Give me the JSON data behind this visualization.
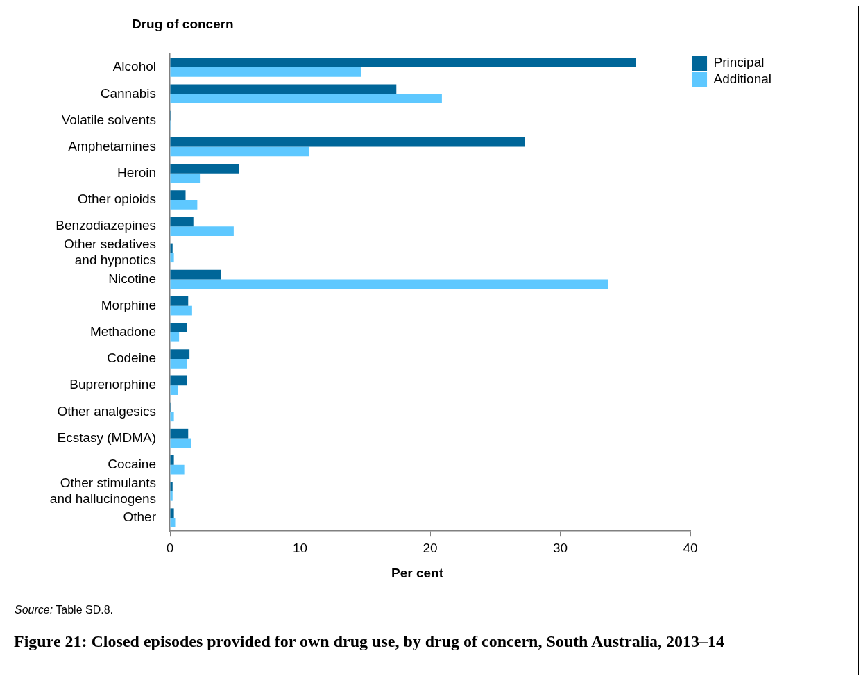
{
  "chart_data": {
    "type": "bar",
    "orientation": "horizontal",
    "title": "Figure 21: Closed episodes provided for own drug use, by drug of concern, South Australia, 2013–14",
    "ylabel": "Drug of concern",
    "xlabel": "Per cent",
    "categories": [
      "Alcohol",
      "Cannabis",
      "Volatile solvents",
      "Amphetamines",
      "Heroin",
      "Other opioids",
      "Benzodiazepines",
      "Other sedatives and hypnotics",
      "Nicotine",
      "Morphine",
      "Methadone",
      "Codeine",
      "Buprenorphine",
      "Other analgesics",
      "Ecstasy (MDMA)",
      "Cocaine",
      "Other stimulants and hallucinogens",
      "Other"
    ],
    "series": [
      {
        "name": "Principal",
        "color": "#006699",
        "values": [
          35.8,
          17.4,
          0.1,
          27.3,
          5.3,
          1.2,
          1.8,
          0.2,
          3.9,
          1.4,
          1.3,
          1.5,
          1.3,
          0.1,
          1.4,
          0.3,
          0.2,
          0.3
        ]
      },
      {
        "name": "Additional",
        "color": "#5ec8ff",
        "values": [
          14.7,
          20.9,
          0.1,
          10.7,
          2.3,
          2.1,
          4.9,
          0.3,
          33.7,
          1.7,
          0.7,
          1.3,
          0.6,
          0.3,
          1.6,
          1.1,
          0.2,
          0.4
        ]
      }
    ],
    "xlim": [
      0,
      40
    ],
    "xticks": [
      0,
      10,
      20,
      30,
      40
    ],
    "grid": false,
    "legend": "top right",
    "annotations": [
      "Source: Table SD.8."
    ]
  }
}
